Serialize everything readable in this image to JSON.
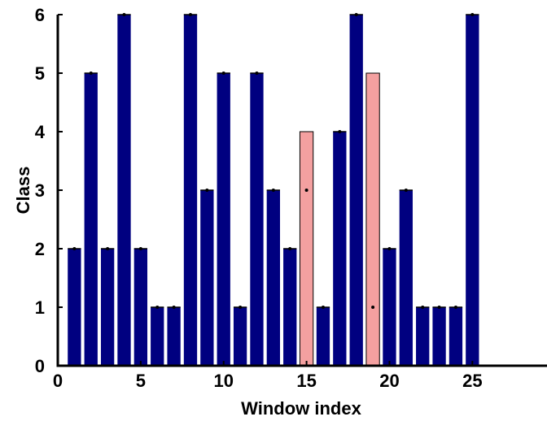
{
  "chart_data": {
    "type": "bar",
    "xlabel": "Window index",
    "ylabel": "Class",
    "xlim": [
      0,
      29.5
    ],
    "ylim": [
      0,
      6
    ],
    "grid": false,
    "xticks": [
      0,
      5,
      10,
      15,
      20,
      25
    ],
    "yticks": [
      0,
      1,
      2,
      3,
      4,
      5,
      6
    ],
    "x": [
      1,
      2,
      3,
      4,
      5,
      6,
      7,
      8,
      9,
      10,
      11,
      12,
      13,
      14,
      15,
      16,
      17,
      18,
      19,
      20,
      21,
      22,
      23,
      24,
      25
    ],
    "values": [
      2,
      5,
      2,
      6,
      2,
      1,
      1,
      6,
      3,
      5,
      1,
      5,
      3,
      2,
      4,
      1,
      4,
      6,
      5,
      2,
      3,
      1,
      1,
      1,
      6
    ],
    "marker_values": [
      2,
      5,
      2,
      6,
      2,
      1,
      1,
      6,
      3,
      5,
      1,
      5,
      3,
      2,
      3,
      1,
      4,
      6,
      1,
      2,
      3,
      1,
      1,
      1,
      6
    ],
    "colors": {
      "correct": "#000080",
      "misclassified": "#f4a0a0",
      "marker": "#000000"
    }
  }
}
